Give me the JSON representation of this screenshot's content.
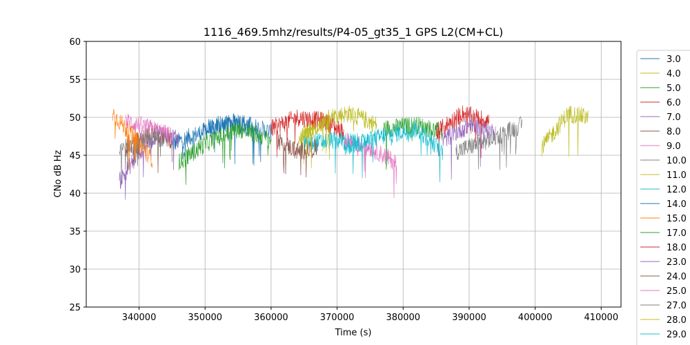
{
  "chart_data": {
    "type": "line",
    "title": "1116_469.5mhz/results/P4-05_gt35_1 GPS L2(CM+CL)",
    "xlabel": "Time (s)",
    "ylabel": "CNo dB Hz",
    "xlim": [
      332000,
      413000
    ],
    "ylim": [
      25,
      60
    ],
    "xticks": [
      340000,
      350000,
      360000,
      370000,
      380000,
      390000,
      400000,
      410000
    ],
    "yticks": [
      25,
      30,
      35,
      40,
      45,
      50,
      55,
      60
    ],
    "grid": true,
    "legend": "right-outside",
    "series": [
      {
        "name": "3.0",
        "color": "#1f77b4",
        "points": [
          [
            345000,
            46.5
          ],
          [
            351000,
            48.5
          ],
          [
            355000,
            49.5
          ],
          [
            360000,
            48.0
          ]
        ]
      },
      {
        "name": "4.0",
        "color": "#bcbd22",
        "points": [
          [
            364000,
            47.0
          ],
          [
            368000,
            50.0
          ],
          [
            372000,
            50.5
          ],
          [
            376000,
            49.0
          ]
        ]
      },
      {
        "name": "5.0",
        "color": "#2ca02c",
        "points": [
          [
            377000,
            48.5
          ],
          [
            382000,
            49.0
          ],
          [
            386000,
            48.0
          ]
        ]
      },
      {
        "name": "6.0",
        "color": "#d62728",
        "points": [
          [
            360000,
            48.5
          ],
          [
            364000,
            50.0
          ],
          [
            368000,
            49.5
          ],
          [
            371000,
            48.0
          ]
        ]
      },
      {
        "name": "7.0",
        "color": "#9467bd",
        "points": [
          [
            337000,
            41.5
          ],
          [
            340000,
            45.5
          ],
          [
            343000,
            48.0
          ],
          [
            346000,
            47.0
          ]
        ]
      },
      {
        "name": "8.0",
        "color": "#8c564b",
        "points": [
          [
            338000,
            46.0
          ],
          [
            342000,
            48.0
          ],
          [
            345000,
            47.0
          ]
        ]
      },
      {
        "name": "9.0",
        "color": "#e377c2",
        "points": [
          [
            338000,
            49.5
          ],
          [
            342000,
            48.5
          ],
          [
            345000,
            47.5
          ]
        ]
      },
      {
        "name": "10.0",
        "color": "#7f7f7f",
        "points": [
          [
            337000,
            45.5
          ],
          [
            340000,
            46.5
          ],
          [
            344000,
            47.5
          ]
        ]
      },
      {
        "name": "11.0",
        "color": "#bcbd22",
        "points": [
          [
            401000,
            46.0
          ],
          [
            405000,
            50.5
          ],
          [
            408000,
            50.0
          ]
        ]
      },
      {
        "name": "12.0",
        "color": "#17becf",
        "points": [
          [
            365000,
            46.5
          ],
          [
            370000,
            47.0
          ],
          [
            375000,
            46.5
          ]
        ]
      },
      {
        "name": "14.0",
        "color": "#1f77b4",
        "points": [
          [
            350000,
            48.5
          ],
          [
            354000,
            49.5
          ],
          [
            358000,
            48.0
          ]
        ]
      },
      {
        "name": "15.0",
        "color": "#ff7f0e",
        "points": [
          [
            336000,
            50.5
          ],
          [
            339000,
            47.5
          ],
          [
            342000,
            44.5
          ]
        ]
      },
      {
        "name": "17.0",
        "color": "#2ca02c",
        "points": [
          [
            346000,
            44.0
          ],
          [
            350000,
            46.5
          ],
          [
            355000,
            48.5
          ],
          [
            360000,
            47.0
          ]
        ]
      },
      {
        "name": "18.0",
        "color": "#d62728",
        "points": [
          [
            385000,
            48.0
          ],
          [
            389000,
            50.5
          ],
          [
            393000,
            49.5
          ]
        ]
      },
      {
        "name": "23.0",
        "color": "#9467bd",
        "points": [
          [
            386000,
            47.0
          ],
          [
            390000,
            49.0
          ],
          [
            394000,
            48.0
          ]
        ]
      },
      {
        "name": "24.0",
        "color": "#8c564b",
        "points": [
          [
            361000,
            47.0
          ],
          [
            364000,
            45.5
          ],
          [
            367000,
            46.0
          ]
        ]
      },
      {
        "name": "25.0",
        "color": "#e377c2",
        "points": [
          [
            371000,
            47.0
          ],
          [
            375000,
            46.0
          ],
          [
            379000,
            44.0
          ]
        ]
      },
      {
        "name": "27.0",
        "color": "#7f7f7f",
        "points": [
          [
            388000,
            45.5
          ],
          [
            393000,
            47.0
          ],
          [
            398000,
            49.0
          ]
        ]
      },
      {
        "name": "28.0",
        "color": "#bcbd22",
        "points": [
          [
            365000,
            48.0
          ],
          [
            369000,
            49.5
          ]
        ]
      },
      {
        "name": "29.0",
        "color": "#17becf",
        "points": [
          [
            371000,
            46.0
          ],
          [
            377000,
            47.5
          ],
          [
            382000,
            48.5
          ],
          [
            386000,
            45.5
          ]
        ]
      }
    ]
  }
}
